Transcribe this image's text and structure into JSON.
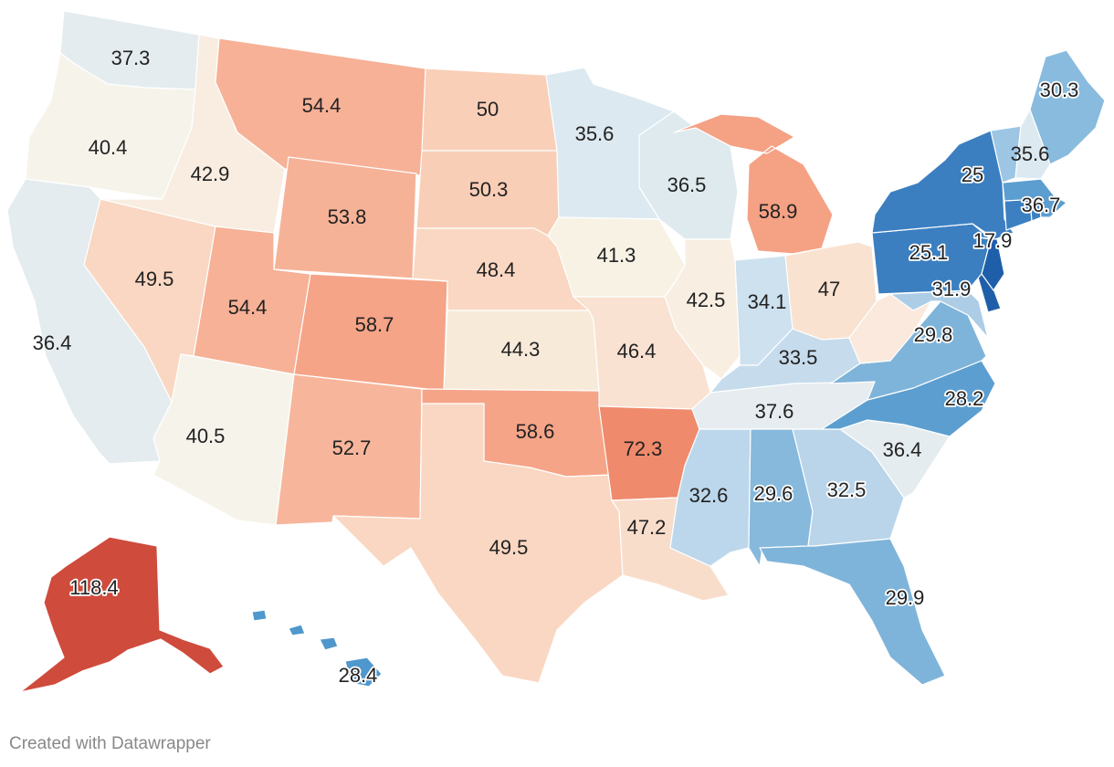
{
  "credit": "Created with Datawrapper",
  "map_data": {
    "type": "choropleth",
    "region": "United States",
    "values": [
      {
        "state": "WA",
        "value": "37.3"
      },
      {
        "state": "OR",
        "value": "40.4"
      },
      {
        "state": "CA",
        "value": "36.4"
      },
      {
        "state": "NV",
        "value": "49.5"
      },
      {
        "state": "ID",
        "value": "42.9"
      },
      {
        "state": "MT",
        "value": "54.4"
      },
      {
        "state": "WY",
        "value": "53.8"
      },
      {
        "state": "UT",
        "value": "54.4"
      },
      {
        "state": "AZ",
        "value": "40.5"
      },
      {
        "state": "CO",
        "value": "58.7"
      },
      {
        "state": "NM",
        "value": "52.7"
      },
      {
        "state": "ND",
        "value": "50"
      },
      {
        "state": "SD",
        "value": "50.3"
      },
      {
        "state": "NE",
        "value": "48.4"
      },
      {
        "state": "KS",
        "value": "44.3"
      },
      {
        "state": "OK",
        "value": "58.6"
      },
      {
        "state": "TX",
        "value": "49.5"
      },
      {
        "state": "MN",
        "value": "35.6"
      },
      {
        "state": "IA",
        "value": "41.3"
      },
      {
        "state": "MO",
        "value": "46.4"
      },
      {
        "state": "AR",
        "value": "72.3"
      },
      {
        "state": "LA",
        "value": "47.2"
      },
      {
        "state": "WI",
        "value": "36.5"
      },
      {
        "state": "IL",
        "value": "42.5"
      },
      {
        "state": "MI",
        "value": "58.9"
      },
      {
        "state": "IN",
        "value": "34.1"
      },
      {
        "state": "OH",
        "value": "47"
      },
      {
        "state": "KY",
        "value": "33.5"
      },
      {
        "state": "TN",
        "value": "37.6"
      },
      {
        "state": "MS",
        "value": "32.6"
      },
      {
        "state": "AL",
        "value": "29.6"
      },
      {
        "state": "GA",
        "value": "32.5"
      },
      {
        "state": "FL",
        "value": "29.9"
      },
      {
        "state": "SC",
        "value": "36.4"
      },
      {
        "state": "NC",
        "value": "28.2"
      },
      {
        "state": "VA",
        "value": "29.8"
      },
      {
        "state": "WV",
        "value": ""
      },
      {
        "state": "MD",
        "value": "31.9"
      },
      {
        "state": "DE",
        "value": ""
      },
      {
        "state": "PA",
        "value": "25.1"
      },
      {
        "state": "NJ",
        "value": "17.9"
      },
      {
        "state": "NY",
        "value": "25"
      },
      {
        "state": "CT",
        "value": ""
      },
      {
        "state": "RI",
        "value": ""
      },
      {
        "state": "MA",
        "value": "36.7"
      },
      {
        "state": "VT",
        "value": ""
      },
      {
        "state": "NH",
        "value": "35.6"
      },
      {
        "state": "ME",
        "value": "30.3"
      },
      {
        "state": "AK",
        "value": "118.4"
      },
      {
        "state": "HI",
        "value": "28.4"
      }
    ],
    "colors": {
      "WA": "#e4ecef",
      "OR": "#f6f4ea",
      "CA": "#e4ecef",
      "NV": "#fad7c2",
      "ID": "#f8ede0",
      "MT": "#f6b196",
      "WY": "#f6b297",
      "UT": "#f6b196",
      "AZ": "#f6f4ea",
      "CO": "#f5a487",
      "NM": "#f7b69b",
      "ND": "#f9cfb8",
      "SD": "#f9ceb6",
      "NE": "#fad7c2",
      "KS": "#f8ead9",
      "OK": "#f5a487",
      "TX": "#fad7c2",
      "MN": "#dce9f0",
      "IA": "#f8f2e5",
      "MO": "#f9e2d2",
      "AR": "#ef8a6c",
      "LA": "#f9ddcb",
      "WI": "#dfeaef",
      "IL": "#f8efe2",
      "MI": "#f5a184",
      "IN": "#cde1ef",
      "OH": "#f9e2d0",
      "KY": "#c6dced",
      "TN": "#e6ecef",
      "MS": "#bcd7eb",
      "AL": "#86b9dc",
      "GA": "#bad5ea",
      "FL": "#7fb4da",
      "SC": "#e4ecef",
      "NC": "#5c9ecf",
      "VA": "#7fb4da",
      "WV": "#fae9dc",
      "MD": "#adcde6",
      "DE": "#1f5faa",
      "PA": "#3b7fc1",
      "NJ": "#1f5faa",
      "NY": "#3b7fc1",
      "CT": "#3d80c1",
      "RI": "#3d80c1",
      "MA": "#5c9ecf",
      "VT": "#9cc6e4",
      "NH": "#dce9f0",
      "ME": "#88bbdd",
      "AK": "#cf4b3c",
      "HI": "#4f97cc"
    }
  }
}
